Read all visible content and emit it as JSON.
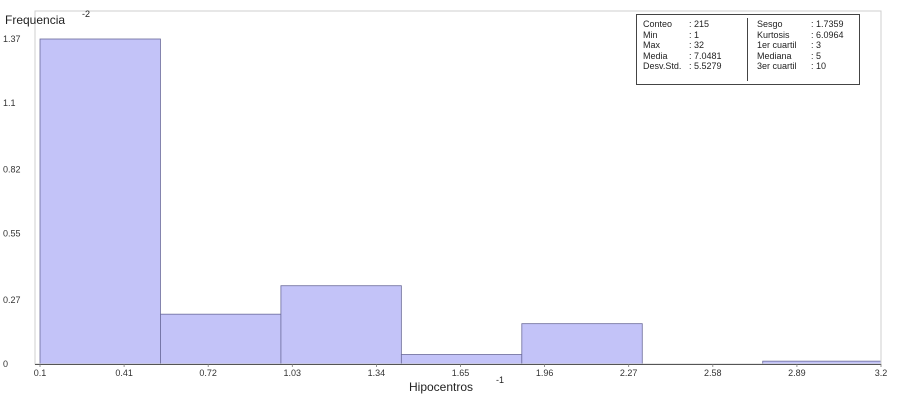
{
  "chart_data": {
    "type": "bar",
    "ylabel": "Frequencia",
    "ylabel_exponent": "-2",
    "xlabel": "Hipocentros",
    "xlabel_exponent": "-1",
    "x_ticks": [
      "0.1",
      "0.41",
      "0.72",
      "1.03",
      "1.34",
      "1.65",
      "1.96",
      "2.27",
      "2.58",
      "2.89",
      "3.2"
    ],
    "y_ticks": [
      {
        "label": "0",
        "value": 0
      },
      {
        "label": "0.27",
        "value": 0.27
      },
      {
        "label": "0.55",
        "value": 0.55
      },
      {
        "label": "0.82",
        "value": 0.82
      },
      {
        "label": "1.1",
        "value": 1.1
      },
      {
        "label": "1.37",
        "value": 1.37
      }
    ],
    "xlim": [
      0.1,
      3.2
    ],
    "ylim": [
      0,
      1.37
    ],
    "bar_color": "#c3c3f8",
    "bar_edge_color": "#6a6a9a",
    "bins": [
      {
        "from": 0.1,
        "to": 0.544,
        "value": 1.37
      },
      {
        "from": 0.544,
        "to": 0.988,
        "value": 0.21
      },
      {
        "from": 0.988,
        "to": 1.432,
        "value": 0.33
      },
      {
        "from": 1.432,
        "to": 1.876,
        "value": 0.04
      },
      {
        "from": 1.876,
        "to": 2.32,
        "value": 0.17
      },
      {
        "from": 2.32,
        "to": 2.764,
        "value": 0
      },
      {
        "from": 2.764,
        "to": 3.2,
        "value": 0.012
      }
    ]
  },
  "stats": {
    "left": [
      {
        "label": "Conteo",
        "value": ": 215"
      },
      {
        "label": "Min",
        "value": ": 1"
      },
      {
        "label": "Max",
        "value": ": 32"
      },
      {
        "label": "Media",
        "value": ": 7.0481"
      },
      {
        "label": "Desv.Std.",
        "value": ": 5.5279"
      }
    ],
    "right": [
      {
        "label": "Sesgo",
        "value": ": 1.7359"
      },
      {
        "label": "Kurtosis",
        "value": ": 6.0964"
      },
      {
        "label": "1er cuartil",
        "value": ": 3"
      },
      {
        "label": "Mediana",
        "value": ": 5"
      },
      {
        "label": "3er cuartil",
        "value": ": 10"
      }
    ]
  }
}
